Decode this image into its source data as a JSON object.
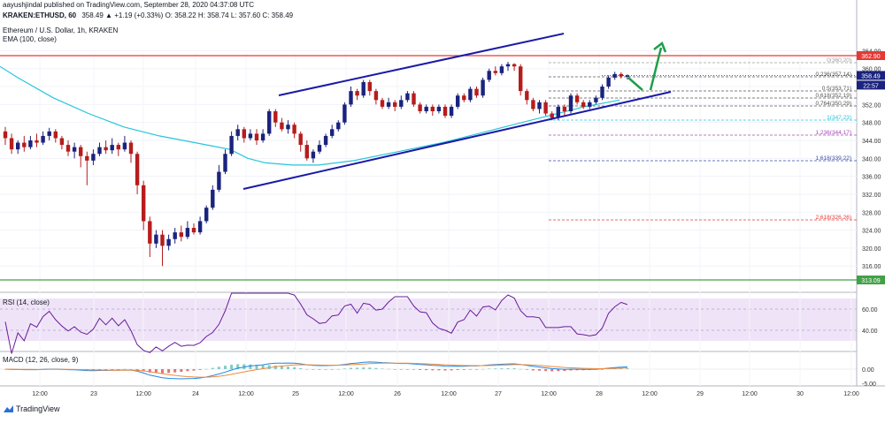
{
  "header": {
    "published": "aayushjindal published on TradingView.com, September 28, 2020 04:37:08 UTC",
    "symbol": "KRAKEN:ETHUSD, 60",
    "ohlc": "358.49 ▲ +1.19 (+0.33%) O: 358.22 H: 358.74 L: 357.60 C: 358.49",
    "title": "Ethereum / U.S. Dollar, 1h, KRAKEN",
    "ema_label": "EMA (100, close)"
  },
  "colors": {
    "up": "#1a237e",
    "down": "#b71c1c",
    "ema": "#26c6da",
    "channel": "#1a1aa6",
    "resistance": "#e53935",
    "support": "#43a047",
    "arrow": "#1e9e4a",
    "rsi": "#6a1b9a",
    "rsi_band": "#efe4f7",
    "macd": "#1e88e5",
    "signal": "#ef8a3c",
    "hist": "#e57373"
  },
  "price_axis": {
    "ticks": [
      "364.00",
      "360.00",
      "356.00",
      "352.00",
      "348.00",
      "344.00",
      "340.00",
      "336.00",
      "332.00",
      "328.00",
      "324.00",
      "320.00",
      "316.00"
    ],
    "last_price": "358.49",
    "countdown": "22:57",
    "resistance_label": "362.90",
    "support_label": "313.09"
  },
  "time_axis": [
    "12:00",
    "23",
    "12:00",
    "24",
    "12:00",
    "25",
    "12:00",
    "26",
    "12:00",
    "27",
    "12:00",
    "28",
    "12:00",
    "29",
    "12:00",
    "30",
    "12:00"
  ],
  "fib_levels": [
    "0(360.20)",
    "0.236(357.14)",
    "0.5(353.71)",
    "0.618(352.19)",
    "0.764(350.29)",
    "1(347.23)",
    "1.236(344.17)",
    "1.618(339.22)",
    "2.618(326.26)"
  ],
  "rsi": {
    "label": "RSI (14, close)",
    "ticks": [
      "60.00",
      "40.00"
    ],
    "current": "60.00"
  },
  "macd": {
    "label": "MACD (12, 26, close, 9)",
    "ticks": [
      "0.00",
      "-5.00"
    ]
  },
  "footer": {
    "brand": "TradingView"
  },
  "chart_data": {
    "type": "candlestick",
    "title": "Ethereum / U.S. Dollar, 1h, KRAKEN",
    "ylim": [
      313,
      366
    ],
    "candles": [
      [
        346,
        344.5,
        347,
        343
      ],
      [
        344.5,
        342,
        345.5,
        341
      ],
      [
        342,
        343.5,
        344,
        341
      ],
      [
        343.5,
        342.5,
        345,
        341.5
      ],
      [
        342.5,
        344,
        345,
        342
      ],
      [
        344,
        343.5,
        345.5,
        342.5
      ],
      [
        343.5,
        345,
        346,
        343
      ],
      [
        345,
        346,
        346.8,
        344
      ],
      [
        346,
        344.5,
        346.5,
        343.5
      ],
      [
        344.5,
        343,
        345,
        342
      ],
      [
        343,
        341.5,
        344,
        340.5
      ],
      [
        341.5,
        342.5,
        343.5,
        340
      ],
      [
        342.5,
        340.5,
        343,
        338
      ],
      [
        340.5,
        339.5,
        341.5,
        334
      ],
      [
        339.5,
        341,
        342,
        338.5
      ],
      [
        341,
        342.5,
        343.5,
        340.5
      ],
      [
        342.5,
        341.8,
        344,
        341
      ],
      [
        341.8,
        343,
        344.5,
        341
      ],
      [
        343,
        342,
        343.5,
        340.5
      ],
      [
        342,
        343.5,
        345,
        341.5
      ],
      [
        343.5,
        341,
        344,
        339
      ],
      [
        341,
        334,
        341.5,
        332
      ],
      [
        334,
        326,
        335,
        324
      ],
      [
        326,
        321,
        327,
        318
      ],
      [
        321,
        323,
        324,
        320
      ],
      [
        323,
        320.5,
        324,
        316
      ],
      [
        320.5,
        322,
        323,
        319.5
      ],
      [
        322,
        323.5,
        324.5,
        321
      ],
      [
        323.5,
        322.5,
        325,
        321.5
      ],
      [
        322.5,
        324.5,
        326,
        322
      ],
      [
        324.5,
        323.5,
        325.5,
        323
      ],
      [
        323.5,
        326,
        327,
        323
      ],
      [
        326,
        329,
        329.5,
        325.5
      ],
      [
        329,
        333,
        334,
        328.5
      ],
      [
        333,
        337,
        338.5,
        332.5
      ],
      [
        337,
        341,
        342,
        336.5
      ],
      [
        341,
        345,
        346,
        340.5
      ],
      [
        345,
        346.5,
        347.5,
        344
      ],
      [
        346.5,
        344.5,
        347,
        343.5
      ],
      [
        344.5,
        345.5,
        346.5,
        344
      ],
      [
        345.5,
        344,
        346.5,
        343
      ],
      [
        344,
        345.5,
        346.5,
        343.5
      ],
      [
        345.5,
        350.5,
        351,
        345
      ],
      [
        350.5,
        348,
        351,
        347
      ],
      [
        348,
        346.5,
        349,
        346
      ],
      [
        346.5,
        347.5,
        348.5,
        345.5
      ],
      [
        347.5,
        345.5,
        348,
        344.5
      ],
      [
        345.5,
        343,
        346,
        341.5
      ],
      [
        343,
        340,
        344,
        339.5
      ],
      [
        340,
        341.5,
        342,
        339
      ],
      [
        341.5,
        343,
        344,
        341
      ],
      [
        343,
        345,
        345.5,
        342.5
      ],
      [
        345,
        346.5,
        347.5,
        344.5
      ],
      [
        346.5,
        348,
        348.5,
        346
      ],
      [
        348,
        352,
        352.5,
        347.5
      ],
      [
        352,
        355,
        356,
        351.5
      ],
      [
        355,
        354,
        355.5,
        353
      ],
      [
        354,
        357,
        357.5,
        353.5
      ],
      [
        357,
        355,
        357.5,
        354
      ],
      [
        355,
        353,
        355.5,
        352
      ],
      [
        353,
        351.5,
        353.5,
        351
      ],
      [
        351.5,
        352.5,
        353.5,
        351
      ],
      [
        352.5,
        351.5,
        353,
        350.5
      ],
      [
        351.5,
        353,
        354,
        351
      ],
      [
        353,
        354.5,
        355,
        352.5
      ],
      [
        354.5,
        352,
        355,
        351.5
      ],
      [
        352,
        350.5,
        352.5,
        350
      ],
      [
        350.5,
        351.5,
        352,
        350
      ],
      [
        351.5,
        350.5,
        352,
        349.5
      ],
      [
        350.5,
        351.5,
        352,
        350
      ],
      [
        351.5,
        349.5,
        352,
        349
      ],
      [
        349.5,
        351.5,
        352,
        349
      ],
      [
        351.5,
        354,
        354.5,
        351
      ],
      [
        354,
        353,
        354.5,
        352.5
      ],
      [
        353,
        355.5,
        356,
        352.5
      ],
      [
        355.5,
        354,
        356,
        353.5
      ],
      [
        354,
        357.5,
        358,
        353.5
      ],
      [
        357.5,
        359.5,
        360,
        357
      ],
      [
        359.5,
        359,
        360.5,
        358.5
      ],
      [
        359,
        360.5,
        361,
        358.5
      ],
      [
        360.5,
        361,
        361.5,
        359.5
      ],
      [
        361,
        360.5,
        361.2,
        359.5
      ],
      [
        360.5,
        355,
        361,
        354
      ],
      [
        355,
        353,
        355.5,
        352
      ],
      [
        353,
        351,
        353.5,
        350.5
      ],
      [
        351,
        352.5,
        353,
        350
      ],
      [
        352.5,
        350,
        353,
        349.5
      ],
      [
        350,
        349,
        350.5,
        348.5
      ],
      [
        349,
        351.5,
        352,
        348.5
      ],
      [
        351.5,
        350.5,
        352,
        349.5
      ],
      [
        350.5,
        354,
        354.5,
        350
      ],
      [
        354,
        352.5,
        354.5,
        352
      ],
      [
        352.5,
        351.5,
        353,
        351
      ],
      [
        351.5,
        352.5,
        353,
        351
      ],
      [
        352.5,
        353.5,
        354,
        352
      ],
      [
        353.5,
        356,
        356.5,
        353
      ],
      [
        356,
        358,
        358.5,
        355.5
      ],
      [
        358,
        358.8,
        359.3,
        357.5
      ],
      [
        358.8,
        358.3,
        359.2,
        357.8
      ],
      [
        358.2,
        358.5,
        358.7,
        357.6
      ]
    ],
    "ema_100": [
      [
        0,
        360.5
      ],
      [
        20,
        358
      ],
      [
        60,
        353.5
      ],
      [
        100,
        350
      ],
      [
        140,
        347
      ],
      [
        180,
        345
      ],
      [
        220,
        343.5
      ],
      [
        260,
        342
      ],
      [
        280,
        340
      ],
      [
        300,
        339
      ],
      [
        330,
        338.5
      ],
      [
        360,
        338.5
      ],
      [
        400,
        339.5
      ],
      [
        450,
        341.5
      ],
      [
        500,
        343.5
      ],
      [
        540,
        345.5
      ],
      [
        580,
        347.5
      ],
      [
        620,
        349.5
      ],
      [
        660,
        351.5
      ],
      [
        700,
        353
      ]
    ]
  }
}
